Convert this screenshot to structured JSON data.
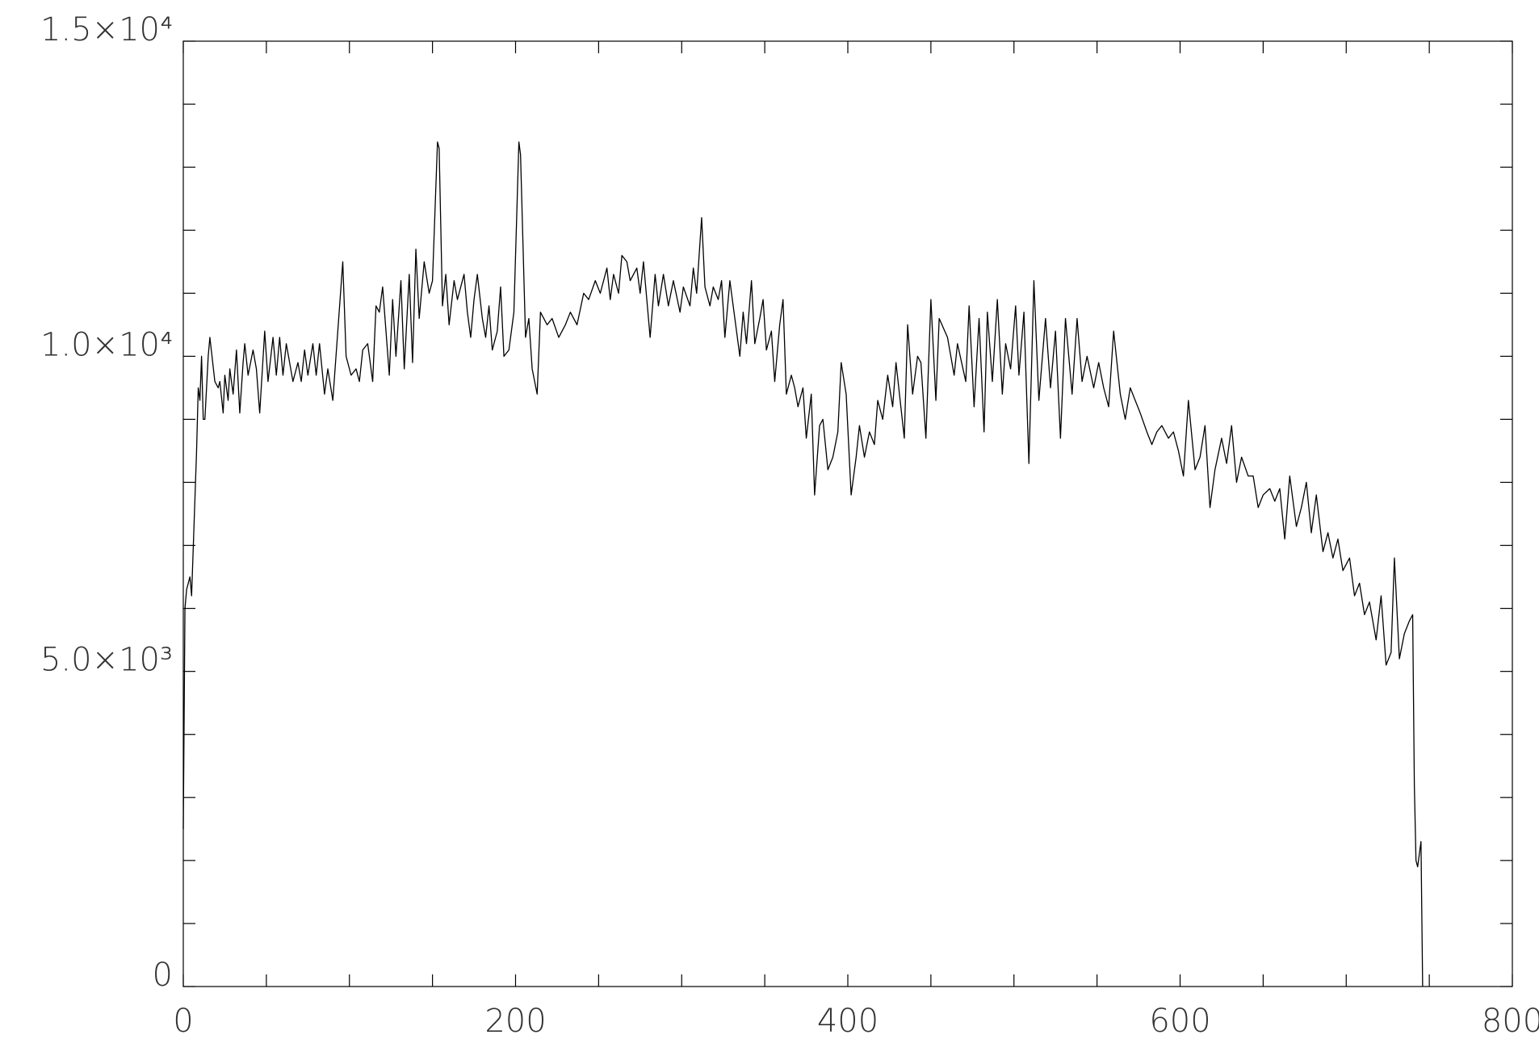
{
  "chart_data": {
    "type": "line",
    "color": "#000000",
    "xlim": [
      0,
      800
    ],
    "ylim": [
      0,
      15000
    ],
    "xticks": [
      0,
      200,
      400,
      600,
      800
    ],
    "yticks": [
      0,
      {
        "value": 5000,
        "label": "5.0×10³"
      },
      {
        "value": 10000,
        "label": "1.0×10⁴"
      },
      {
        "value": 15000,
        "label": "1.5×10⁴"
      }
    ],
    "x_minor": 4,
    "y_minor": 5,
    "x": [
      0,
      1,
      2,
      4,
      5,
      8,
      9,
      10,
      11,
      12,
      13,
      15,
      16,
      19,
      21,
      22,
      24,
      25,
      27,
      28,
      30,
      32,
      34,
      36,
      37,
      39,
      42,
      44,
      46,
      49,
      51,
      54,
      56,
      58,
      60,
      62,
      66,
      69,
      71,
      73,
      75,
      78,
      80,
      82,
      85,
      87,
      90,
      93,
      96,
      98,
      101,
      104,
      106,
      108,
      111,
      114,
      116,
      118,
      120,
      124,
      126,
      128,
      131,
      133,
      136,
      138,
      140,
      142,
      145,
      148,
      150,
      153,
      154,
      156,
      158,
      160,
      163,
      165,
      167,
      169,
      171,
      173,
      175,
      177,
      180,
      182,
      184,
      186,
      189,
      191,
      193,
      196,
      199,
      201,
      202,
      203,
      206,
      208,
      210,
      213,
      215,
      219,
      222,
      226,
      230,
      233,
      237,
      241,
      244,
      248,
      251,
      255,
      257,
      259,
      262,
      264,
      267,
      269,
      273,
      275,
      277,
      281,
      284,
      286,
      289,
      292,
      295,
      299,
      301,
      305,
      307,
      309,
      312,
      314,
      317,
      319,
      322,
      324,
      326,
      329,
      331,
      335,
      337,
      339,
      342,
      344,
      347,
      349,
      351,
      354,
      356,
      359,
      361,
      363,
      366,
      368,
      370,
      373,
      375,
      378,
      380,
      383,
      385,
      388,
      391,
      394,
      396,
      399,
      402,
      405,
      407,
      410,
      413,
      416,
      418,
      421,
      424,
      427,
      429,
      434,
      436,
      439,
      442,
      444,
      447,
      450,
      453,
      455,
      460,
      464,
      466,
      471,
      473,
      476,
      479,
      482,
      484,
      487,
      490,
      493,
      495,
      498,
      501,
      503,
      506,
      509,
      512,
      515,
      519,
      522,
      525,
      528,
      531,
      535,
      538,
      541,
      544,
      548,
      551,
      554,
      557,
      560,
      564,
      567,
      570,
      573,
      576,
      580,
      583,
      586,
      589,
      593,
      596,
      599,
      602,
      605,
      609,
      612,
      615,
      618,
      621,
      625,
      628,
      631,
      634,
      637,
      641,
      644,
      647,
      650,
      654,
      657,
      660,
      663,
      666,
      670,
      673,
      676,
      679,
      682,
      686,
      689,
      692,
      695,
      698,
      702,
      705,
      708,
      711,
      714,
      718,
      721,
      724,
      727,
      729,
      732,
      735,
      738,
      740,
      741,
      742,
      743,
      745,
      746
    ],
    "values": [
      2500,
      6000,
      6300,
      6500,
      6200,
      8500,
      9500,
      9300,
      10000,
      9000,
      9000,
      10000,
      10300,
      9600,
      9500,
      9600,
      9100,
      9700,
      9300,
      9800,
      9400,
      10100,
      9100,
      9900,
      10200,
      9700,
      10100,
      9800,
      9100,
      10400,
      9600,
      10300,
      9700,
      10300,
      9700,
      10200,
      9600,
      9900,
      9600,
      10100,
      9700,
      10200,
      9700,
      10200,
      9400,
      9800,
      9300,
      10400,
      11500,
      10000,
      9700,
      9800,
      9600,
      10100,
      10200,
      9600,
      10800,
      10700,
      11100,
      9700,
      10900,
      10000,
      11200,
      9800,
      11300,
      9900,
      11700,
      10600,
      11500,
      11000,
      11200,
      13400,
      13300,
      10800,
      11300,
      10500,
      11200,
      10900,
      11100,
      11300,
      10700,
      10300,
      10900,
      11300,
      10600,
      10300,
      10800,
      10100,
      10400,
      11100,
      10000,
      10100,
      10700,
      12500,
      13400,
      13200,
      10300,
      10600,
      9800,
      9400,
      10700,
      10500,
      10600,
      10300,
      10500,
      10700,
      10500,
      11000,
      10900,
      11200,
      11000,
      11400,
      10900,
      11300,
      11000,
      11600,
      11500,
      11200,
      11400,
      11000,
      11500,
      10300,
      11300,
      10800,
      11300,
      10800,
      11200,
      10700,
      11100,
      10800,
      11400,
      11000,
      12200,
      11100,
      10800,
      11100,
      10900,
      11200,
      10300,
      11200,
      10800,
      10000,
      10700,
      10200,
      11200,
      10200,
      10600,
      10900,
      10100,
      10400,
      9600,
      10500,
      10900,
      9400,
      9700,
      9500,
      9200,
      9500,
      8700,
      9400,
      7800,
      8900,
      9000,
      8200,
      8400,
      8800,
      9900,
      9400,
      7800,
      8400,
      8900,
      8400,
      8800,
      8600,
      9300,
      9000,
      9700,
      9200,
      9900,
      8700,
      10500,
      9400,
      10000,
      9900,
      8700,
      10900,
      9300,
      10600,
      10300,
      9700,
      10200,
      9600,
      10800,
      9200,
      10600,
      8800,
      10700,
      9600,
      10900,
      9400,
      10200,
      9800,
      10800,
      9700,
      10700,
      8300,
      11200,
      9300,
      10600,
      9500,
      10400,
      8700,
      10600,
      9400,
      10600,
      9600,
      10000,
      9500,
      9900,
      9500,
      9200,
      10400,
      9400,
      9000,
      9500,
      9300,
      9100,
      8800,
      8600,
      8800,
      8900,
      8700,
      8800,
      8500,
      8100,
      9300,
      8200,
      8400,
      8900,
      7600,
      8200,
      8700,
      8300,
      8900,
      8000,
      8400,
      8100,
      8100,
      7600,
      7800,
      7900,
      7700,
      7900,
      7100,
      8100,
      7300,
      7600,
      8000,
      7200,
      7800,
      6900,
      7200,
      6800,
      7100,
      6600,
      6800,
      6200,
      6400,
      5900,
      6100,
      5500,
      6200,
      5100,
      5300,
      6800,
      5200,
      5600,
      5800,
      5900,
      3200,
      2000,
      1900,
      2300,
      0
    ]
  }
}
